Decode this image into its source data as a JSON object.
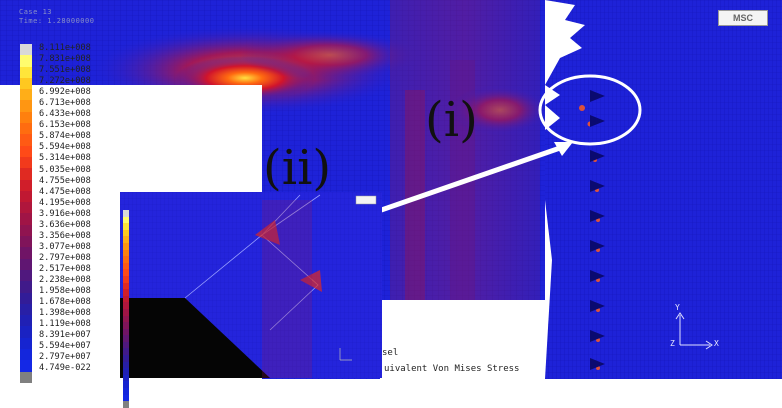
{
  "header": {
    "line1": "Case  13",
    "line2": "Time:   1.28000000"
  },
  "legend": {
    "values": [
      "8.111e+008",
      "7.831e+008",
      "7.551e+008",
      "7.272e+008",
      "6.992e+008",
      "6.713e+008",
      "6.433e+008",
      "6.153e+008",
      "5.874e+008",
      "5.594e+008",
      "5.314e+008",
      "5.035e+008",
      "4.755e+008",
      "4.475e+008",
      "4.195e+008",
      "3.916e+008",
      "3.636e+008",
      "3.356e+008",
      "3.077e+008",
      "2.797e+008",
      "2.517e+008",
      "2.238e+008",
      "1.958e+008",
      "1.678e+008",
      "1.398e+008",
      "1.119e+008",
      "8.391e+007",
      "5.594e+007",
      "2.797e+007",
      "4.749e-022"
    ],
    "colors": [
      "#d8d8d8",
      "#fffc6e",
      "#ffe53a",
      "#ffc820",
      "#ffae18",
      "#ff9612",
      "#ff800e",
      "#ff6c10",
      "#ff5a14",
      "#ff4a18",
      "#f23a1c",
      "#e02a22",
      "#d01e2a",
      "#c01832",
      "#b0163c",
      "#a01446",
      "#901450",
      "#80145a",
      "#701466",
      "#601672",
      "#50187e",
      "#401a8a",
      "#321c98",
      "#281fa6",
      "#2020b4",
      "#1a22c2",
      "#1624d0",
      "#1426dc",
      "#1428e6",
      "#808080"
    ]
  },
  "annotations": {
    "label_i": "(i)",
    "label_ii": "(ii)"
  },
  "logo": {
    "text": "MSC"
  },
  "footer": {
    "case_suffix": "sel",
    "result_name": "uivalent Von Mises Stress"
  },
  "axes": {
    "y": "Y",
    "x": "X",
    "z": "Z"
  }
}
